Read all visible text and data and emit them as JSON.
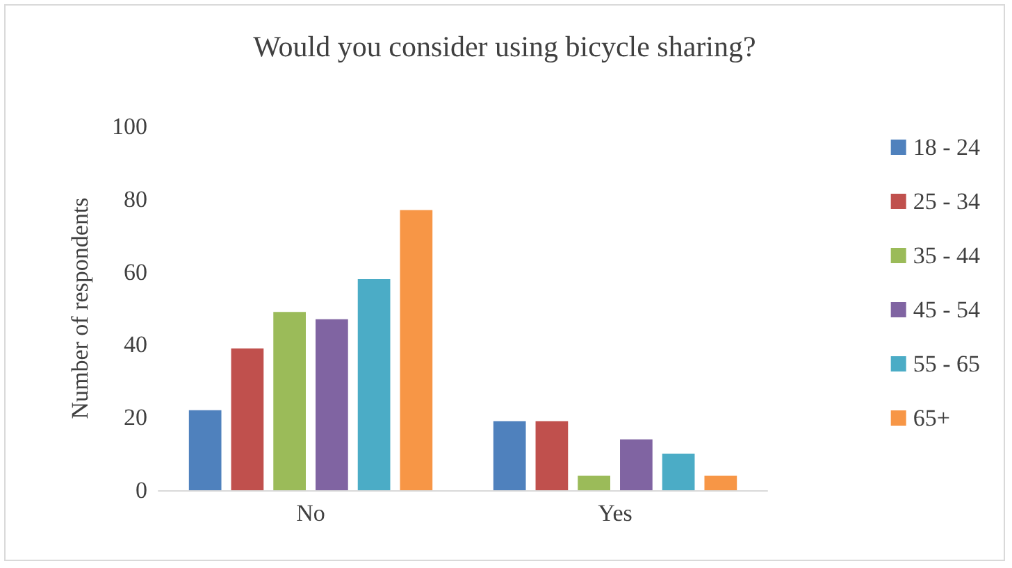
{
  "chart_data": {
    "type": "bar",
    "title": "Would you consider using bicycle sharing?",
    "ylabel": "Number of respondents",
    "categories": [
      "No",
      "Yes"
    ],
    "series": [
      {
        "name": "18 - 24",
        "color": "#4f81bd",
        "values": [
          22,
          19
        ]
      },
      {
        "name": "25 - 34",
        "color": "#c0504d",
        "values": [
          39,
          19
        ]
      },
      {
        "name": "35 - 44",
        "color": "#9bbb59",
        "values": [
          49,
          4
        ]
      },
      {
        "name": "45 - 54",
        "color": "#8064a2",
        "values": [
          47,
          14
        ]
      },
      {
        "name": "55 - 65",
        "color": "#4bacc6",
        "values": [
          58,
          10
        ]
      },
      {
        "name": "65+",
        "color": "#f79646",
        "values": [
          77,
          4
        ]
      }
    ],
    "ylim": [
      0,
      100
    ],
    "yticks": [
      0,
      20,
      40,
      60,
      80,
      100
    ],
    "grid": false,
    "legend": "right"
  }
}
